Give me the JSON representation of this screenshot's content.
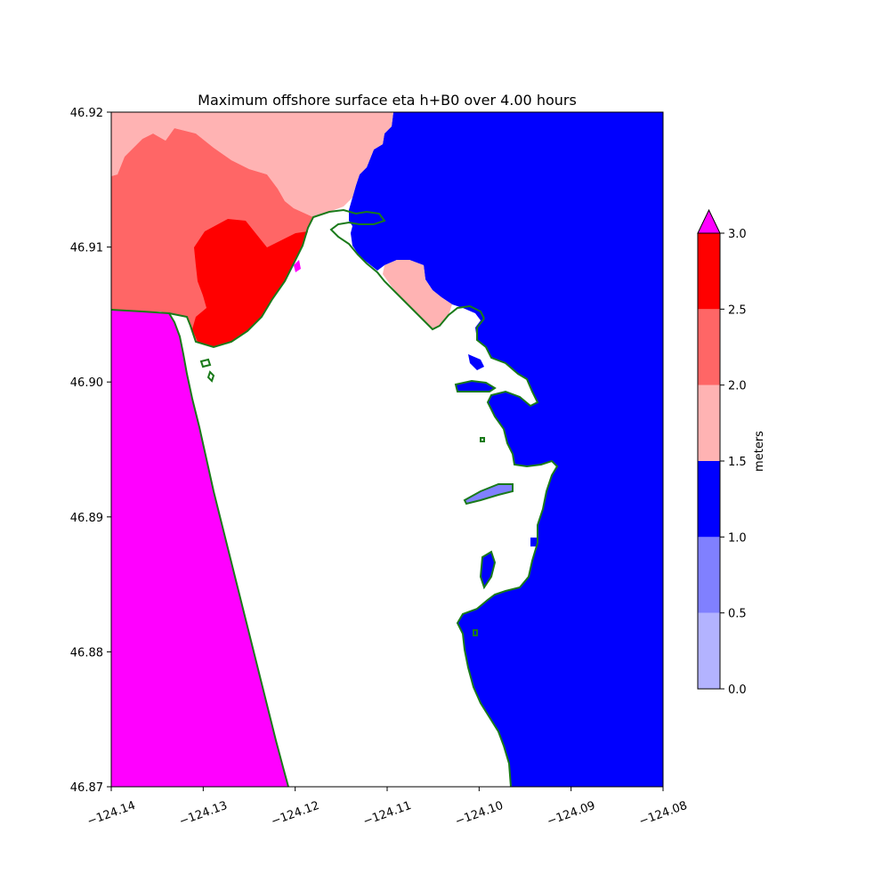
{
  "chart_data": {
    "type": "heatmap",
    "title": "Maximum offshore surface eta h+B0 over 4.00 hours",
    "xlim": [
      -124.14,
      -124.08
    ],
    "ylim": [
      46.87,
      46.92
    ],
    "x_ticks": [
      "−124.14",
      "−124.13",
      "−124.12",
      "−124.11",
      "−124.10",
      "−124.09",
      "−124.08"
    ],
    "y_ticks": [
      "46.87",
      "46.88",
      "46.89",
      "46.90",
      "46.91",
      "46.92"
    ],
    "colorbar": {
      "label": "meters",
      "extend": "max",
      "ticks": [
        "0.0",
        "0.5",
        "1.0",
        "1.5",
        "2.0",
        "2.5",
        "3.0"
      ],
      "levels": [
        0.0,
        0.5,
        1.0,
        1.5,
        2.0,
        2.5,
        3.0
      ],
      "colors": [
        "#b3b3ff",
        "#8080ff",
        "#0000ff",
        "#ffb3b3",
        "#ff6666",
        "#ff0000"
      ],
      "over_color": "#ff00ff"
    },
    "shoreline_color": "#1a7a1a",
    "land_color": "#ffffff"
  }
}
